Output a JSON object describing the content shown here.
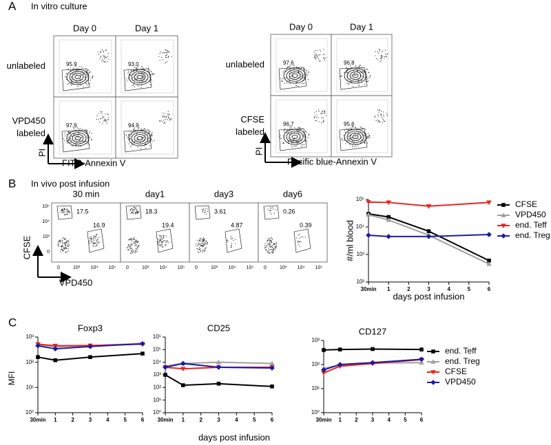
{
  "figure": {
    "panel_a": {
      "label": "A",
      "title": "In vitro culture",
      "left": {
        "columns": [
          "Day 0",
          "Day 1"
        ],
        "rows": [
          [
            "unlabeled"
          ],
          [
            "VPD450",
            "labeled"
          ]
        ],
        "gates": [
          [
            "95.9",
            "93.0"
          ],
          [
            "97.9",
            "94.9"
          ]
        ],
        "y_axis": "PI",
        "x_axis": "FITC-Annexin V"
      },
      "right": {
        "columns": [
          "Day 0",
          "Day 1"
        ],
        "rows": [
          [
            "unlabeled"
          ],
          [
            "CFSE",
            "labeled"
          ]
        ],
        "gates": [
          [
            "97.6",
            "96.8"
          ],
          [
            "96.7",
            "95.6"
          ]
        ],
        "y_axis": "PI",
        "x_axis": "Pacific blue-Annexin V"
      }
    },
    "panel_b": {
      "label": "B",
      "title": "In vivo post infusion",
      "columns": [
        "30 min",
        "day1",
        "day3",
        "day6"
      ],
      "gates": [
        [
          "17.5",
          "16.9"
        ],
        [
          "18.3",
          "19.4"
        ],
        [
          "3.61",
          "4.87"
        ],
        [
          "0.26",
          "0.39"
        ]
      ],
      "y_axis": "CFSE",
      "x_axis": "VPD450",
      "y_ticks": [
        "10⁵",
        "10⁴",
        "10³",
        "0"
      ],
      "x_ticks": [
        "0",
        "10³",
        "10⁴",
        "10⁵"
      ]
    },
    "panel_c": {
      "label": "C",
      "y_axis": "MFI",
      "x_axis": "days post infusion"
    }
  },
  "chart_data": [
    {
      "type": "line",
      "y_label": "#/ml blood",
      "x_label": "days post infusion",
      "log_y": true,
      "legend": "right",
      "x": [
        0,
        1,
        3,
        6
      ],
      "xlim": [
        0,
        6
      ],
      "xticks": [
        {
          "value": 0,
          "label": "30min"
        },
        1,
        2,
        3,
        4,
        5,
        6
      ],
      "ylim": [
        100,
        100000
      ],
      "yticks": [
        {
          "value": 100,
          "label": "10²"
        },
        {
          "value": 1000,
          "label": "10³"
        },
        {
          "value": 10000,
          "label": "10⁴"
        },
        {
          "value": 100000,
          "label": "10⁵"
        }
      ],
      "series": [
        {
          "name": "CFSE",
          "color": "#000000",
          "values": [
            30000,
            23000,
            7000,
            600
          ]
        },
        {
          "name": "VPD450",
          "color": "#a0a0a0",
          "values": [
            28000,
            18000,
            5000,
            450
          ]
        },
        {
          "name": "end. Teff",
          "color": "#e8231f",
          "values": [
            80000,
            78000,
            57000,
            78000
          ]
        },
        {
          "name": "end. Treg",
          "color": "#1a1aa8",
          "values": [
            5000,
            4500,
            4500,
            5300
          ]
        }
      ]
    },
    {
      "type": "line",
      "title": "Foxp3",
      "log_y": true,
      "x": [
        0,
        1,
        3,
        6
      ],
      "xlim": [
        0,
        6
      ],
      "xticks": [
        {
          "value": 0,
          "label": "30min"
        },
        1,
        2,
        3,
        4,
        5,
        6
      ],
      "ylim": [
        1,
        1000
      ],
      "yticks": [
        {
          "value": 1,
          "label": "10⁰"
        },
        {
          "value": 10,
          "label": "10¹"
        },
        {
          "value": 100,
          "label": "10²"
        },
        {
          "value": 1000,
          "label": "10³"
        }
      ],
      "series": [
        {
          "color": "#000000",
          "values": [
            160,
            120,
            160,
            220
          ]
        },
        {
          "color": "#a0a0a0",
          "values": [
            500,
            420,
            450,
            560
          ]
        },
        {
          "color": "#e8231f",
          "values": [
            520,
            450,
            460,
            520
          ]
        },
        {
          "color": "#1a1aa8",
          "values": [
            450,
            340,
            420,
            540
          ]
        }
      ]
    },
    {
      "type": "line",
      "title": "CD25",
      "log_y": true,
      "x": [
        0,
        1,
        3,
        6
      ],
      "xlim": [
        0,
        6
      ],
      "xticks": [
        {
          "value": 0,
          "label": "30min"
        },
        1,
        2,
        3,
        4,
        5,
        6
      ],
      "ylim": [
        1,
        1000000
      ],
      "yticks": [
        {
          "value": 1,
          "label": "10⁰"
        },
        {
          "value": 10,
          "label": "10¹"
        },
        {
          "value": 100,
          "label": "10²"
        },
        {
          "value": 1000,
          "label": "10³"
        },
        {
          "value": 10000,
          "label": "10⁴"
        },
        {
          "value": 100000,
          "label": "10⁵"
        },
        {
          "value": 1000000,
          "label": "10⁶"
        }
      ],
      "series": [
        {
          "color": "#000000",
          "values": [
            1000,
            150,
            200,
            120
          ]
        },
        {
          "color": "#a0a0a0",
          "values": [
            5000,
            8000,
            10000,
            8000
          ]
        },
        {
          "color": "#e8231f",
          "values": [
            4000,
            3000,
            4000,
            4000
          ]
        },
        {
          "color": "#1a1aa8",
          "values": [
            4000,
            8000,
            4000,
            3500
          ]
        }
      ]
    },
    {
      "type": "line",
      "title": "CD127",
      "log_y": true,
      "legend": "right",
      "x": [
        0,
        1,
        3,
        6
      ],
      "xlim": [
        0,
        6
      ],
      "xticks": [
        {
          "value": 0,
          "label": "30min"
        },
        1,
        2,
        3,
        4,
        5,
        6
      ],
      "ylim": [
        1,
        1000
      ],
      "yticks": [
        {
          "value": 1,
          "label": "10⁰"
        },
        {
          "value": 10,
          "label": "10¹"
        },
        {
          "value": 100,
          "label": "10²"
        },
        {
          "value": 1000,
          "label": "10³"
        }
      ],
      "series": [
        {
          "name": "end. Teff",
          "color": "#000000",
          "values": [
            400,
            420,
            440,
            420
          ]
        },
        {
          "name": "end. Treg",
          "color": "#a0a0a0",
          "values": [
            70,
            95,
            115,
            120
          ]
        },
        {
          "name": "CFSE",
          "color": "#e8231f",
          "values": [
            45,
            85,
            110,
            160
          ]
        },
        {
          "name": "VPD450",
          "color": "#1a1aa8",
          "values": [
            60,
            100,
            120,
            165
          ]
        }
      ]
    }
  ]
}
